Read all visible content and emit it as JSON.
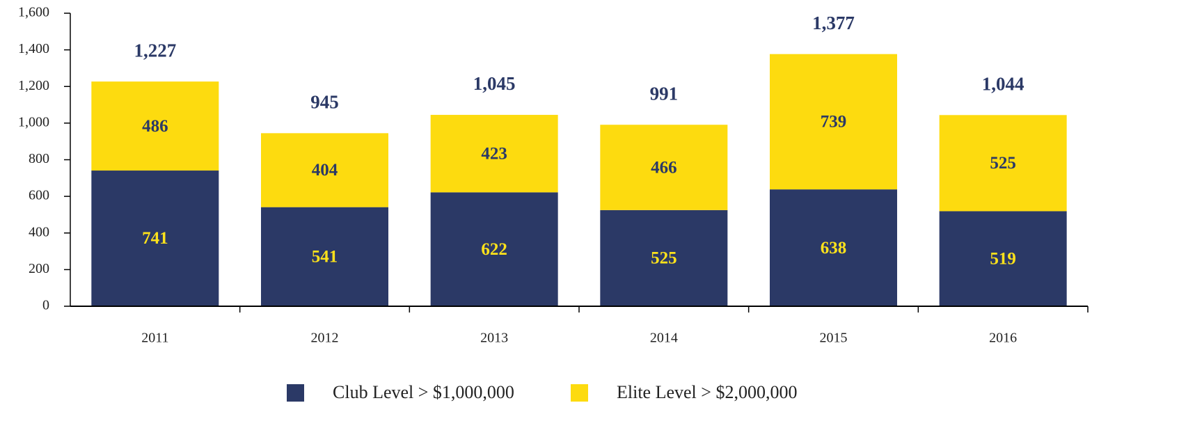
{
  "chart_data": {
    "type": "stacked_bar",
    "categories": [
      "2011",
      "2012",
      "2013",
      "2014",
      "2015",
      "2016"
    ],
    "series": [
      {
        "name": "Club Level > $1,000,000",
        "color": "#2b3966",
        "label_color": "#fde21b",
        "values": [
          741,
          541,
          622,
          525,
          638,
          519
        ]
      },
      {
        "name": "Elite Level > $2,000,000",
        "color": "#fddb0f",
        "label_color": "#2b3966",
        "values": [
          486,
          404,
          423,
          466,
          739,
          525
        ]
      }
    ],
    "totals": [
      1227,
      945,
      1045,
      991,
      1377,
      1044
    ],
    "total_labels": [
      "1,227",
      "945",
      "1,045",
      "991",
      "1,377",
      "1,044"
    ],
    "ylim": [
      0,
      1600
    ],
    "yticks": [
      0,
      200,
      400,
      600,
      800,
      {
        "value": 1000,
        "label": "1,000"
      },
      {
        "value": 1200,
        "label": "1,200"
      },
      {
        "value": 1400,
        "label": "1,400"
      },
      {
        "value": 1600,
        "label": "1,600"
      }
    ],
    "legend": "bottom"
  }
}
